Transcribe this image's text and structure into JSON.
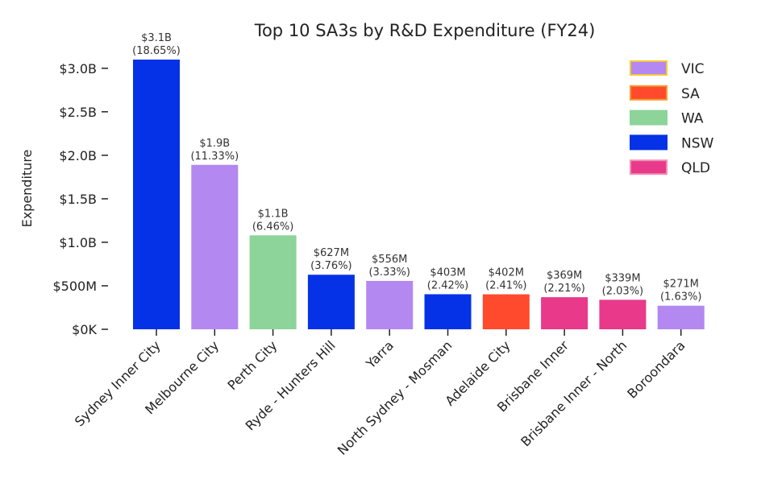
{
  "chart_data": {
    "type": "bar",
    "title": "Top 10 SA3s by R&D Expenditure (FY24)",
    "xlabel": "",
    "ylabel": "Expenditure",
    "ylim": [
      0,
      3100000000
    ],
    "yticks": [
      {
        "value": 0,
        "label": "$0K"
      },
      {
        "value": 500000000,
        "label": "$500M"
      },
      {
        "value": 1000000000,
        "label": "$1.0B"
      },
      {
        "value": 1500000000,
        "label": "$1.5B"
      },
      {
        "value": 2000000000,
        "label": "$2.0B"
      },
      {
        "value": 2500000000,
        "label": "$2.5B"
      },
      {
        "value": 3000000000,
        "label": "$3.0B"
      }
    ],
    "categories": [
      "Sydney Inner City",
      "Melbourne City",
      "Perth City",
      "Ryde - Hunters Hill",
      "Yarra",
      "North Sydney - Mosman",
      "Adelaide City",
      "Brisbane Inner",
      "Brisbane Inner - North",
      "Boroondara"
    ],
    "values": [
      3100000000,
      1890000000,
      1080000000,
      627000000,
      556000000,
      403000000,
      402000000,
      369000000,
      339000000,
      271000000
    ],
    "states": [
      "NSW",
      "VIC",
      "WA",
      "NSW",
      "VIC",
      "NSW",
      "SA",
      "QLD",
      "QLD",
      "VIC"
    ],
    "value_labels": [
      "$3.1B",
      "$1.9B",
      "$1.1B",
      "$627M",
      "$556M",
      "$403M",
      "$402M",
      "$369M",
      "$339M",
      "$271M"
    ],
    "pct_labels": [
      "(18.65%)",
      "(11.33%)",
      "(6.46%)",
      "(3.76%)",
      "(3.33%)",
      "(2.42%)",
      "(2.41%)",
      "(2.21%)",
      "(2.03%)",
      "(1.63%)"
    ],
    "legend": [
      {
        "name": "VIC",
        "color": "#b388f0",
        "edge": "#f5c73a"
      },
      {
        "name": "SA",
        "color": "#ff4a2d",
        "edge": "#f59a2a"
      },
      {
        "name": "WA",
        "color": "#8cd49a",
        "edge": "#8cd49a"
      },
      {
        "name": "NSW",
        "color": "#0532e6",
        "edge": "#0532e6"
      },
      {
        "name": "QLD",
        "color": "#e8398a",
        "edge": "#f08fb8"
      }
    ],
    "legend_position": "top-right",
    "grid": false
  }
}
